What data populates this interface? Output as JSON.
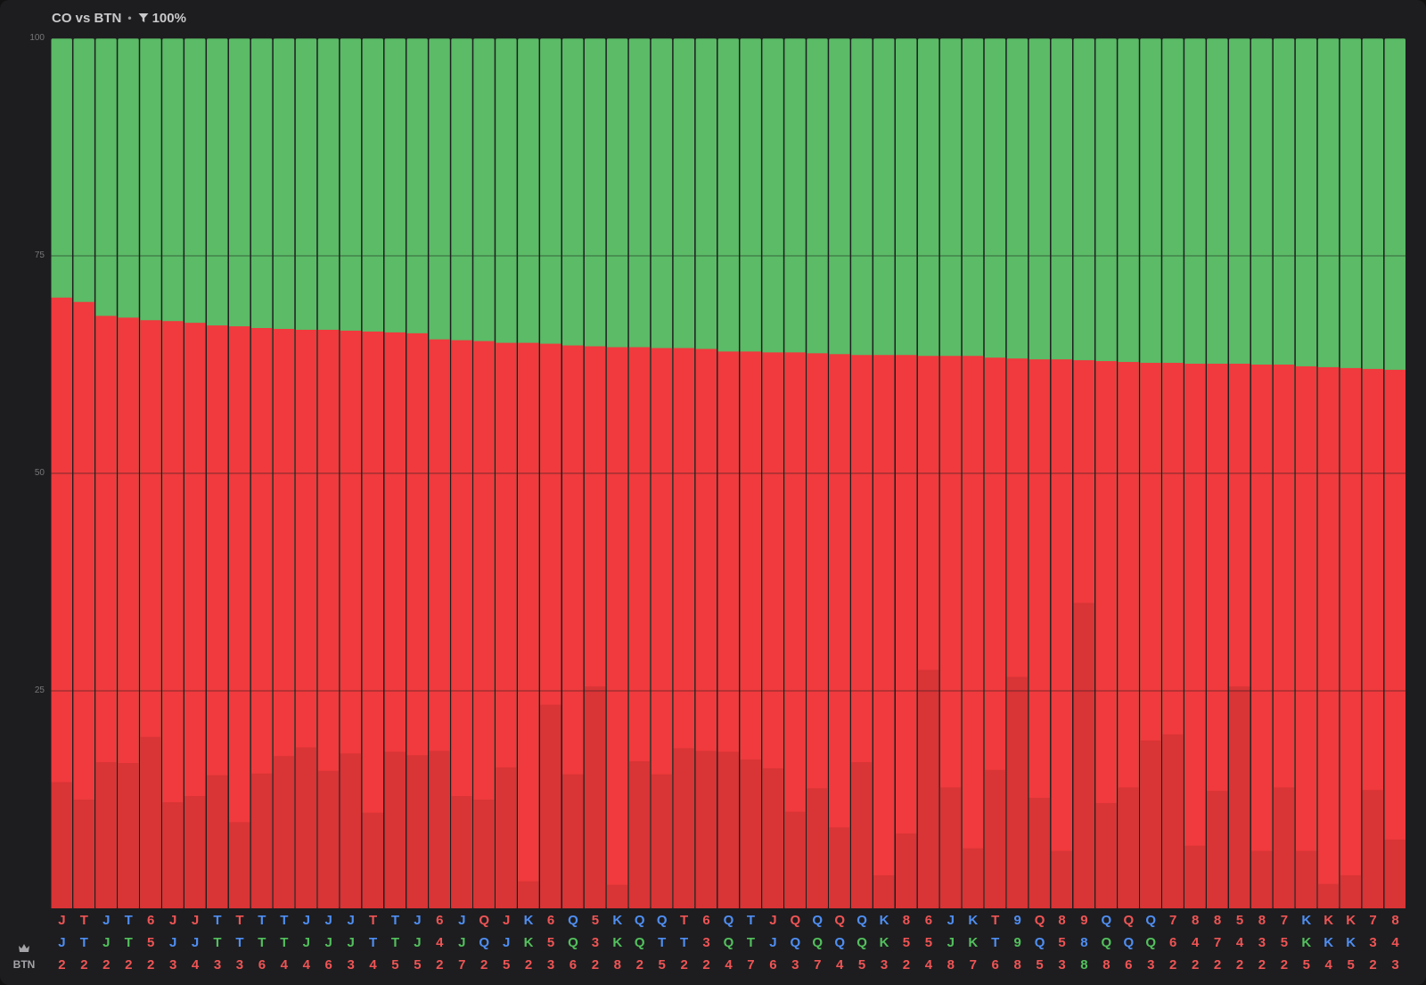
{
  "header": {
    "title": "CO vs BTN",
    "separator": "•",
    "filter_label": "100%"
  },
  "axis": {
    "position_label": "BTN",
    "crown_icon": "crown-icon"
  },
  "colors": {
    "green": "#5bbb67",
    "red": "#f03a3d",
    "dark_red": "#d93436",
    "grid": "#1e1e1e",
    "card_red": "#ef5455",
    "card_blue": "#4f8ef2",
    "card_green": "#53c05d"
  },
  "chart_data": {
    "type": "bar",
    "ylim": [
      0,
      100
    ],
    "y_ticks": [
      100,
      75,
      50,
      25
    ],
    "grid": true,
    "categories": [
      {
        "cards": [
          {
            "r": "J",
            "c": "red"
          },
          {
            "r": "J",
            "c": "blue"
          },
          {
            "r": "2",
            "c": "red"
          }
        ],
        "red": 70.2,
        "dark": 14.5
      },
      {
        "cards": [
          {
            "r": "T",
            "c": "red"
          },
          {
            "r": "T",
            "c": "blue"
          },
          {
            "r": "2",
            "c": "red"
          }
        ],
        "red": 69.7,
        "dark": 12.5
      },
      {
        "cards": [
          {
            "r": "J",
            "c": "blue"
          },
          {
            "r": "J",
            "c": "green"
          },
          {
            "r": "2",
            "c": "red"
          }
        ],
        "red": 68.1,
        "dark": 16.8
      },
      {
        "cards": [
          {
            "r": "T",
            "c": "blue"
          },
          {
            "r": "T",
            "c": "green"
          },
          {
            "r": "2",
            "c": "red"
          }
        ],
        "red": 67.9,
        "dark": 16.7
      },
      {
        "cards": [
          {
            "r": "6",
            "c": "red"
          },
          {
            "r": "5",
            "c": "red"
          },
          {
            "r": "2",
            "c": "red"
          }
        ],
        "red": 67.6,
        "dark": 19.7
      },
      {
        "cards": [
          {
            "r": "J",
            "c": "red"
          },
          {
            "r": "J",
            "c": "blue"
          },
          {
            "r": "3",
            "c": "red"
          }
        ],
        "red": 67.5,
        "dark": 12.2
      },
      {
        "cards": [
          {
            "r": "J",
            "c": "red"
          },
          {
            "r": "J",
            "c": "blue"
          },
          {
            "r": "4",
            "c": "red"
          }
        ],
        "red": 67.3,
        "dark": 12.9
      },
      {
        "cards": [
          {
            "r": "T",
            "c": "blue"
          },
          {
            "r": "T",
            "c": "green"
          },
          {
            "r": "3",
            "c": "red"
          }
        ],
        "red": 67.0,
        "dark": 15.3
      },
      {
        "cards": [
          {
            "r": "T",
            "c": "red"
          },
          {
            "r": "T",
            "c": "blue"
          },
          {
            "r": "3",
            "c": "red"
          }
        ],
        "red": 66.9,
        "dark": 9.9
      },
      {
        "cards": [
          {
            "r": "T",
            "c": "blue"
          },
          {
            "r": "T",
            "c": "green"
          },
          {
            "r": "6",
            "c": "red"
          }
        ],
        "red": 66.7,
        "dark": 15.5
      },
      {
        "cards": [
          {
            "r": "T",
            "c": "blue"
          },
          {
            "r": "T",
            "c": "green"
          },
          {
            "r": "4",
            "c": "red"
          }
        ],
        "red": 66.6,
        "dark": 17.5
      },
      {
        "cards": [
          {
            "r": "J",
            "c": "blue"
          },
          {
            "r": "J",
            "c": "green"
          },
          {
            "r": "4",
            "c": "red"
          }
        ],
        "red": 66.5,
        "dark": 18.5
      },
      {
        "cards": [
          {
            "r": "J",
            "c": "blue"
          },
          {
            "r": "J",
            "c": "green"
          },
          {
            "r": "6",
            "c": "red"
          }
        ],
        "red": 66.5,
        "dark": 15.8
      },
      {
        "cards": [
          {
            "r": "J",
            "c": "blue"
          },
          {
            "r": "J",
            "c": "green"
          },
          {
            "r": "3",
            "c": "red"
          }
        ],
        "red": 66.4,
        "dark": 17.8
      },
      {
        "cards": [
          {
            "r": "T",
            "c": "red"
          },
          {
            "r": "T",
            "c": "blue"
          },
          {
            "r": "4",
            "c": "red"
          }
        ],
        "red": 66.3,
        "dark": 11.0
      },
      {
        "cards": [
          {
            "r": "T",
            "c": "blue"
          },
          {
            "r": "T",
            "c": "green"
          },
          {
            "r": "5",
            "c": "red"
          }
        ],
        "red": 66.2,
        "dark": 18.0
      },
      {
        "cards": [
          {
            "r": "J",
            "c": "blue"
          },
          {
            "r": "J",
            "c": "green"
          },
          {
            "r": "5",
            "c": "red"
          }
        ],
        "red": 66.1,
        "dark": 17.6
      },
      {
        "cards": [
          {
            "r": "6",
            "c": "red"
          },
          {
            "r": "4",
            "c": "red"
          },
          {
            "r": "2",
            "c": "red"
          }
        ],
        "red": 65.4,
        "dark": 18.1
      },
      {
        "cards": [
          {
            "r": "J",
            "c": "blue"
          },
          {
            "r": "J",
            "c": "green"
          },
          {
            "r": "7",
            "c": "red"
          }
        ],
        "red": 65.3,
        "dark": 12.9
      },
      {
        "cards": [
          {
            "r": "Q",
            "c": "red"
          },
          {
            "r": "Q",
            "c": "blue"
          },
          {
            "r": "2",
            "c": "red"
          }
        ],
        "red": 65.2,
        "dark": 12.5
      },
      {
        "cards": [
          {
            "r": "J",
            "c": "red"
          },
          {
            "r": "J",
            "c": "blue"
          },
          {
            "r": "5",
            "c": "red"
          }
        ],
        "red": 65.0,
        "dark": 16.2
      },
      {
        "cards": [
          {
            "r": "K",
            "c": "blue"
          },
          {
            "r": "K",
            "c": "green"
          },
          {
            "r": "2",
            "c": "red"
          }
        ],
        "red": 65.0,
        "dark": 3.1
      },
      {
        "cards": [
          {
            "r": "6",
            "c": "red"
          },
          {
            "r": "5",
            "c": "red"
          },
          {
            "r": "3",
            "c": "red"
          }
        ],
        "red": 64.9,
        "dark": 23.4
      },
      {
        "cards": [
          {
            "r": "Q",
            "c": "blue"
          },
          {
            "r": "Q",
            "c": "green"
          },
          {
            "r": "6",
            "c": "red"
          }
        ],
        "red": 64.7,
        "dark": 15.4
      },
      {
        "cards": [
          {
            "r": "5",
            "c": "red"
          },
          {
            "r": "3",
            "c": "red"
          },
          {
            "r": "2",
            "c": "red"
          }
        ],
        "red": 64.6,
        "dark": 25.5
      },
      {
        "cards": [
          {
            "r": "K",
            "c": "blue"
          },
          {
            "r": "K",
            "c": "green"
          },
          {
            "r": "8",
            "c": "red"
          }
        ],
        "red": 64.5,
        "dark": 2.7
      },
      {
        "cards": [
          {
            "r": "Q",
            "c": "blue"
          },
          {
            "r": "Q",
            "c": "green"
          },
          {
            "r": "2",
            "c": "red"
          }
        ],
        "red": 64.5,
        "dark": 16.9
      },
      {
        "cards": [
          {
            "r": "Q",
            "c": "blue"
          },
          {
            "r": "T",
            "c": "blue"
          },
          {
            "r": "5",
            "c": "red"
          }
        ],
        "red": 64.4,
        "dark": 15.4
      },
      {
        "cards": [
          {
            "r": "T",
            "c": "red"
          },
          {
            "r": "T",
            "c": "blue"
          },
          {
            "r": "2",
            "c": "red"
          }
        ],
        "red": 64.4,
        "dark": 18.4
      },
      {
        "cards": [
          {
            "r": "6",
            "c": "red"
          },
          {
            "r": "3",
            "c": "red"
          },
          {
            "r": "2",
            "c": "red"
          }
        ],
        "red": 64.3,
        "dark": 18.1
      },
      {
        "cards": [
          {
            "r": "Q",
            "c": "blue"
          },
          {
            "r": "Q",
            "c": "green"
          },
          {
            "r": "4",
            "c": "red"
          }
        ],
        "red": 64.0,
        "dark": 18.0
      },
      {
        "cards": [
          {
            "r": "T",
            "c": "blue"
          },
          {
            "r": "T",
            "c": "green"
          },
          {
            "r": "7",
            "c": "red"
          }
        ],
        "red": 64.0,
        "dark": 17.1
      },
      {
        "cards": [
          {
            "r": "J",
            "c": "red"
          },
          {
            "r": "J",
            "c": "blue"
          },
          {
            "r": "6",
            "c": "red"
          }
        ],
        "red": 63.9,
        "dark": 16.1
      },
      {
        "cards": [
          {
            "r": "Q",
            "c": "red"
          },
          {
            "r": "Q",
            "c": "blue"
          },
          {
            "r": "3",
            "c": "red"
          }
        ],
        "red": 63.9,
        "dark": 11.1
      },
      {
        "cards": [
          {
            "r": "Q",
            "c": "blue"
          },
          {
            "r": "Q",
            "c": "green"
          },
          {
            "r": "7",
            "c": "red"
          }
        ],
        "red": 63.8,
        "dark": 13.8
      },
      {
        "cards": [
          {
            "r": "Q",
            "c": "red"
          },
          {
            "r": "Q",
            "c": "blue"
          },
          {
            "r": "4",
            "c": "red"
          }
        ],
        "red": 63.7,
        "dark": 9.3
      },
      {
        "cards": [
          {
            "r": "Q",
            "c": "blue"
          },
          {
            "r": "Q",
            "c": "green"
          },
          {
            "r": "5",
            "c": "red"
          }
        ],
        "red": 63.6,
        "dark": 16.8
      },
      {
        "cards": [
          {
            "r": "K",
            "c": "blue"
          },
          {
            "r": "K",
            "c": "green"
          },
          {
            "r": "3",
            "c": "red"
          }
        ],
        "red": 63.6,
        "dark": 3.8
      },
      {
        "cards": [
          {
            "r": "8",
            "c": "red"
          },
          {
            "r": "5",
            "c": "red"
          },
          {
            "r": "2",
            "c": "red"
          }
        ],
        "red": 63.6,
        "dark": 8.6
      },
      {
        "cards": [
          {
            "r": "6",
            "c": "red"
          },
          {
            "r": "5",
            "c": "red"
          },
          {
            "r": "4",
            "c": "red"
          }
        ],
        "red": 63.5,
        "dark": 27.4
      },
      {
        "cards": [
          {
            "r": "J",
            "c": "blue"
          },
          {
            "r": "J",
            "c": "green"
          },
          {
            "r": "8",
            "c": "red"
          }
        ],
        "red": 63.5,
        "dark": 13.9
      },
      {
        "cards": [
          {
            "r": "K",
            "c": "blue"
          },
          {
            "r": "K",
            "c": "green"
          },
          {
            "r": "7",
            "c": "red"
          }
        ],
        "red": 63.5,
        "dark": 6.9
      },
      {
        "cards": [
          {
            "r": "T",
            "c": "red"
          },
          {
            "r": "T",
            "c": "blue"
          },
          {
            "r": "6",
            "c": "red"
          }
        ],
        "red": 63.3,
        "dark": 15.9
      },
      {
        "cards": [
          {
            "r": "9",
            "c": "blue"
          },
          {
            "r": "9",
            "c": "green"
          },
          {
            "r": "8",
            "c": "red"
          }
        ],
        "red": 63.2,
        "dark": 26.6
      },
      {
        "cards": [
          {
            "r": "Q",
            "c": "red"
          },
          {
            "r": "Q",
            "c": "blue"
          },
          {
            "r": "5",
            "c": "red"
          }
        ],
        "red": 63.1,
        "dark": 12.7
      },
      {
        "cards": [
          {
            "r": "8",
            "c": "red"
          },
          {
            "r": "5",
            "c": "red"
          },
          {
            "r": "3",
            "c": "red"
          }
        ],
        "red": 63.1,
        "dark": 6.6
      },
      {
        "cards": [
          {
            "r": "9",
            "c": "red"
          },
          {
            "r": "8",
            "c": "blue"
          },
          {
            "r": "8",
            "c": "green"
          }
        ],
        "red": 63.0,
        "dark": 35.1
      },
      {
        "cards": [
          {
            "r": "Q",
            "c": "blue"
          },
          {
            "r": "Q",
            "c": "green"
          },
          {
            "r": "8",
            "c": "red"
          }
        ],
        "red": 62.9,
        "dark": 12.1
      },
      {
        "cards": [
          {
            "r": "Q",
            "c": "red"
          },
          {
            "r": "Q",
            "c": "blue"
          },
          {
            "r": "6",
            "c": "red"
          }
        ],
        "red": 62.8,
        "dark": 13.9
      },
      {
        "cards": [
          {
            "r": "Q",
            "c": "blue"
          },
          {
            "r": "Q",
            "c": "green"
          },
          {
            "r": "3",
            "c": "red"
          }
        ],
        "red": 62.7,
        "dark": 19.3
      },
      {
        "cards": [
          {
            "r": "7",
            "c": "red"
          },
          {
            "r": "6",
            "c": "red"
          },
          {
            "r": "2",
            "c": "red"
          }
        ],
        "red": 62.7,
        "dark": 20.0
      },
      {
        "cards": [
          {
            "r": "8",
            "c": "red"
          },
          {
            "r": "4",
            "c": "red"
          },
          {
            "r": "2",
            "c": "red"
          }
        ],
        "red": 62.6,
        "dark": 7.2
      },
      {
        "cards": [
          {
            "r": "8",
            "c": "red"
          },
          {
            "r": "7",
            "c": "red"
          },
          {
            "r": "2",
            "c": "red"
          }
        ],
        "red": 62.6,
        "dark": 13.5
      },
      {
        "cards": [
          {
            "r": "5",
            "c": "red"
          },
          {
            "r": "4",
            "c": "red"
          },
          {
            "r": "2",
            "c": "red"
          }
        ],
        "red": 62.6,
        "dark": 25.5
      },
      {
        "cards": [
          {
            "r": "8",
            "c": "red"
          },
          {
            "r": "3",
            "c": "red"
          },
          {
            "r": "2",
            "c": "red"
          }
        ],
        "red": 62.5,
        "dark": 6.6
      },
      {
        "cards": [
          {
            "r": "7",
            "c": "red"
          },
          {
            "r": "5",
            "c": "red"
          },
          {
            "r": "2",
            "c": "red"
          }
        ],
        "red": 62.5,
        "dark": 13.9
      },
      {
        "cards": [
          {
            "r": "K",
            "c": "blue"
          },
          {
            "r": "K",
            "c": "green"
          },
          {
            "r": "5",
            "c": "red"
          }
        ],
        "red": 62.3,
        "dark": 6.6
      },
      {
        "cards": [
          {
            "r": "K",
            "c": "red"
          },
          {
            "r": "K",
            "c": "blue"
          },
          {
            "r": "4",
            "c": "red"
          }
        ],
        "red": 62.2,
        "dark": 2.8
      },
      {
        "cards": [
          {
            "r": "K",
            "c": "red"
          },
          {
            "r": "K",
            "c": "blue"
          },
          {
            "r": "5",
            "c": "red"
          }
        ],
        "red": 62.1,
        "dark": 3.8
      },
      {
        "cards": [
          {
            "r": "7",
            "c": "red"
          },
          {
            "r": "3",
            "c": "red"
          },
          {
            "r": "2",
            "c": "red"
          }
        ],
        "red": 62.0,
        "dark": 13.6
      },
      {
        "cards": [
          {
            "r": "8",
            "c": "red"
          },
          {
            "r": "4",
            "c": "red"
          },
          {
            "r": "3",
            "c": "red"
          }
        ],
        "red": 61.9,
        "dark": 7.9
      }
    ]
  }
}
